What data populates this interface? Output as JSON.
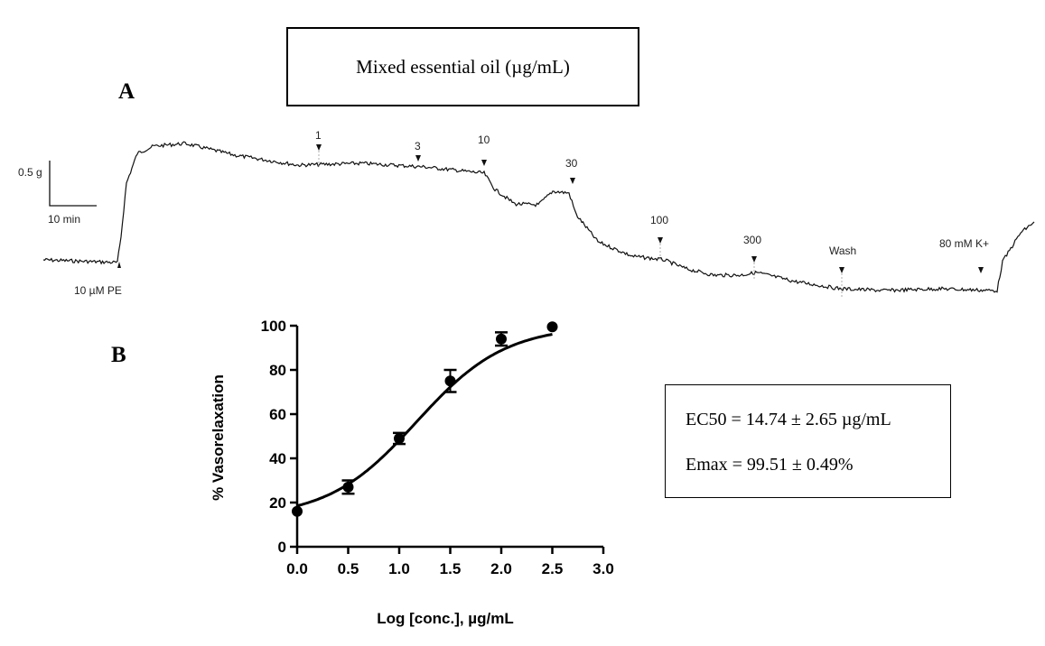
{
  "title_box": "Mixed essential oil (µg/mL)",
  "panel_a_label": "A",
  "panel_b_label": "B",
  "trace": {
    "scale_y": "0.5 g",
    "scale_x": "10 min",
    "markers": [
      {
        "label": "10 µM PE"
      },
      {
        "label": "1"
      },
      {
        "label": "3"
      },
      {
        "label": "10"
      },
      {
        "label": "30"
      },
      {
        "label": "100"
      },
      {
        "label": "300"
      },
      {
        "label": "Wash"
      },
      {
        "label": "80 mM K+"
      }
    ]
  },
  "results": {
    "ec50": "EC50 = 14.74 ± 2.65 µg/mL",
    "emax": "Emax = 99.51 ± 0.49%"
  },
  "chart_data": {
    "type": "scatter",
    "title": "",
    "xlabel": "Log [conc.], µg/mL",
    "ylabel": "% Vasorelaxation",
    "xlim": [
      0.0,
      3.0
    ],
    "ylim": [
      0,
      100
    ],
    "xticks": [
      "0.0",
      "0.5",
      "1.0",
      "1.5",
      "2.0",
      "2.5",
      "3.0"
    ],
    "yticks": [
      "0",
      "20",
      "40",
      "60",
      "80",
      "100"
    ],
    "series": [
      {
        "name": "Mixed essential oil",
        "x": [
          0.0,
          0.5,
          1.0,
          1.5,
          2.0,
          2.5
        ],
        "y": [
          16,
          27,
          49,
          75,
          94,
          99.5
        ],
        "error": [
          1,
          3,
          2.5,
          5,
          3,
          1
        ]
      }
    ],
    "fit": {
      "type": "sigmoidal",
      "bottom": 13,
      "top": 100,
      "logEC50": 1.17,
      "hill": 1.0
    }
  }
}
